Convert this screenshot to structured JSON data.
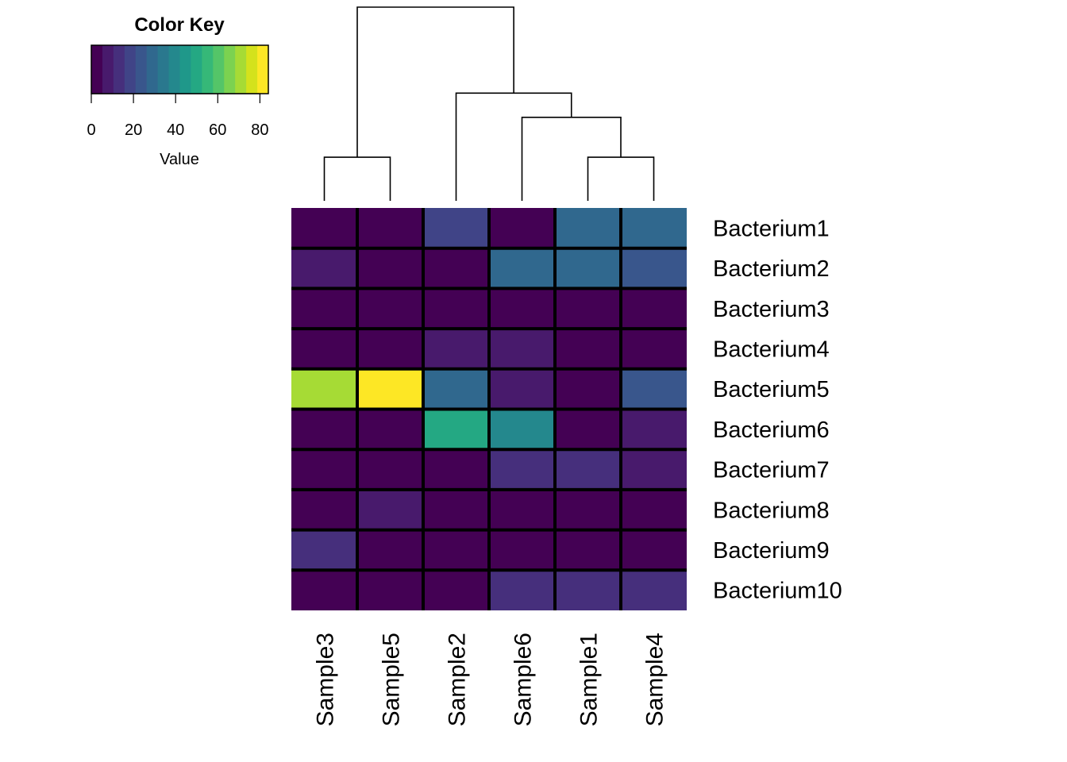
{
  "chart_data": {
    "type": "heatmap",
    "color_key": {
      "title": "Color Key",
      "label": "Value",
      "range": [
        0,
        84
      ],
      "ticks": [
        0,
        20,
        40,
        60,
        80
      ],
      "bins": 16,
      "palette": [
        "#440154",
        "#481568",
        "#482677",
        "#453781",
        "#3F4788",
        "#39558C",
        "#32648E",
        "#2D718E",
        "#287D8E",
        "#238A8D",
        "#1F968B",
        "#20A386",
        "#29AF7F",
        "#3CBC75",
        "#56C667",
        "#75D054",
        "#95D840",
        "#BADE28",
        "#DDE318",
        "#FDE725"
      ]
    },
    "columns": [
      "Sample3",
      "Sample5",
      "Sample2",
      "Sample6",
      "Sample1",
      "Sample4"
    ],
    "rows": [
      "Bacterium1",
      "Bacterium2",
      "Bacterium3",
      "Bacterium4",
      "Bacterium5",
      "Bacterium6",
      "Bacterium7",
      "Bacterium8",
      "Bacterium9",
      "Bacterium10"
    ],
    "values": [
      [
        1,
        1,
        20,
        1,
        29,
        30
      ],
      [
        8,
        1,
        1,
        31,
        31,
        22
      ],
      [
        1,
        1,
        1,
        1,
        1,
        1
      ],
      [
        1,
        1,
        6,
        7,
        1,
        1
      ],
      [
        70,
        84,
        29,
        7,
        5,
        23
      ],
      [
        1,
        1,
        50,
        37,
        5,
        6
      ],
      [
        1,
        1,
        1,
        15,
        15,
        7
      ],
      [
        1,
        9,
        1,
        1,
        1,
        1
      ],
      [
        15,
        1,
        1,
        1,
        1,
        1
      ],
      [
        1,
        1,
        1,
        14,
        14,
        14
      ]
    ],
    "column_dendrogram": {
      "nodes": [
        {
          "id": "n1",
          "left": "Sample3",
          "right": "Sample5",
          "height": 1.8
        },
        {
          "id": "n2",
          "left": "Sample1",
          "right": "Sample4",
          "height": 1.8
        },
        {
          "id": "n3",
          "left": "Sample6",
          "right": "n2",
          "height": 3.45
        },
        {
          "id": "n4",
          "left": "Sample2",
          "right": "n3",
          "height": 4.45
        },
        {
          "id": "n5",
          "left": "n1",
          "right": "n4",
          "height": 8.0
        }
      ],
      "max_height": 8.0
    }
  }
}
